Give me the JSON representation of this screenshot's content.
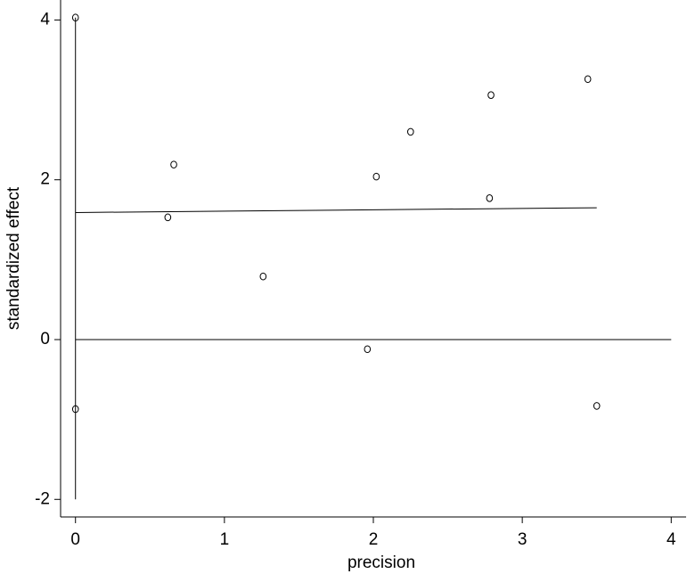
{
  "chart_data": {
    "type": "scatter",
    "x_label": "precision",
    "y_label": "standardized effect",
    "series": [
      {
        "x": [
          0,
          0,
          0.62,
          0.66,
          1.26,
          1.96,
          2.02,
          2.25,
          2.79,
          2.78,
          3.44,
          3.5
        ],
        "values": [
          4.03,
          -0.87,
          1.53,
          2.19,
          0.79,
          -0.12,
          2.04,
          2.6,
          3.06,
          1.77,
          3.26,
          -0.83
        ],
        "color": "#000000"
      }
    ],
    "lines": [
      {
        "x": [
          0,
          3.5
        ],
        "y": [
          1.59,
          1.65
        ]
      },
      {
        "x": [
          0,
          4
        ],
        "y": [
          0,
          0
        ]
      },
      {
        "x": [
          0,
          0
        ],
        "y": [
          -2,
          4.03
        ]
      }
    ],
    "xlim": [
      -0.1,
      4.1
    ],
    "ylim": [
      -2.22,
      4.25
    ],
    "xticks": [
      0,
      1,
      2,
      3,
      4
    ],
    "yticks": [
      -2,
      0,
      2,
      4
    ]
  }
}
